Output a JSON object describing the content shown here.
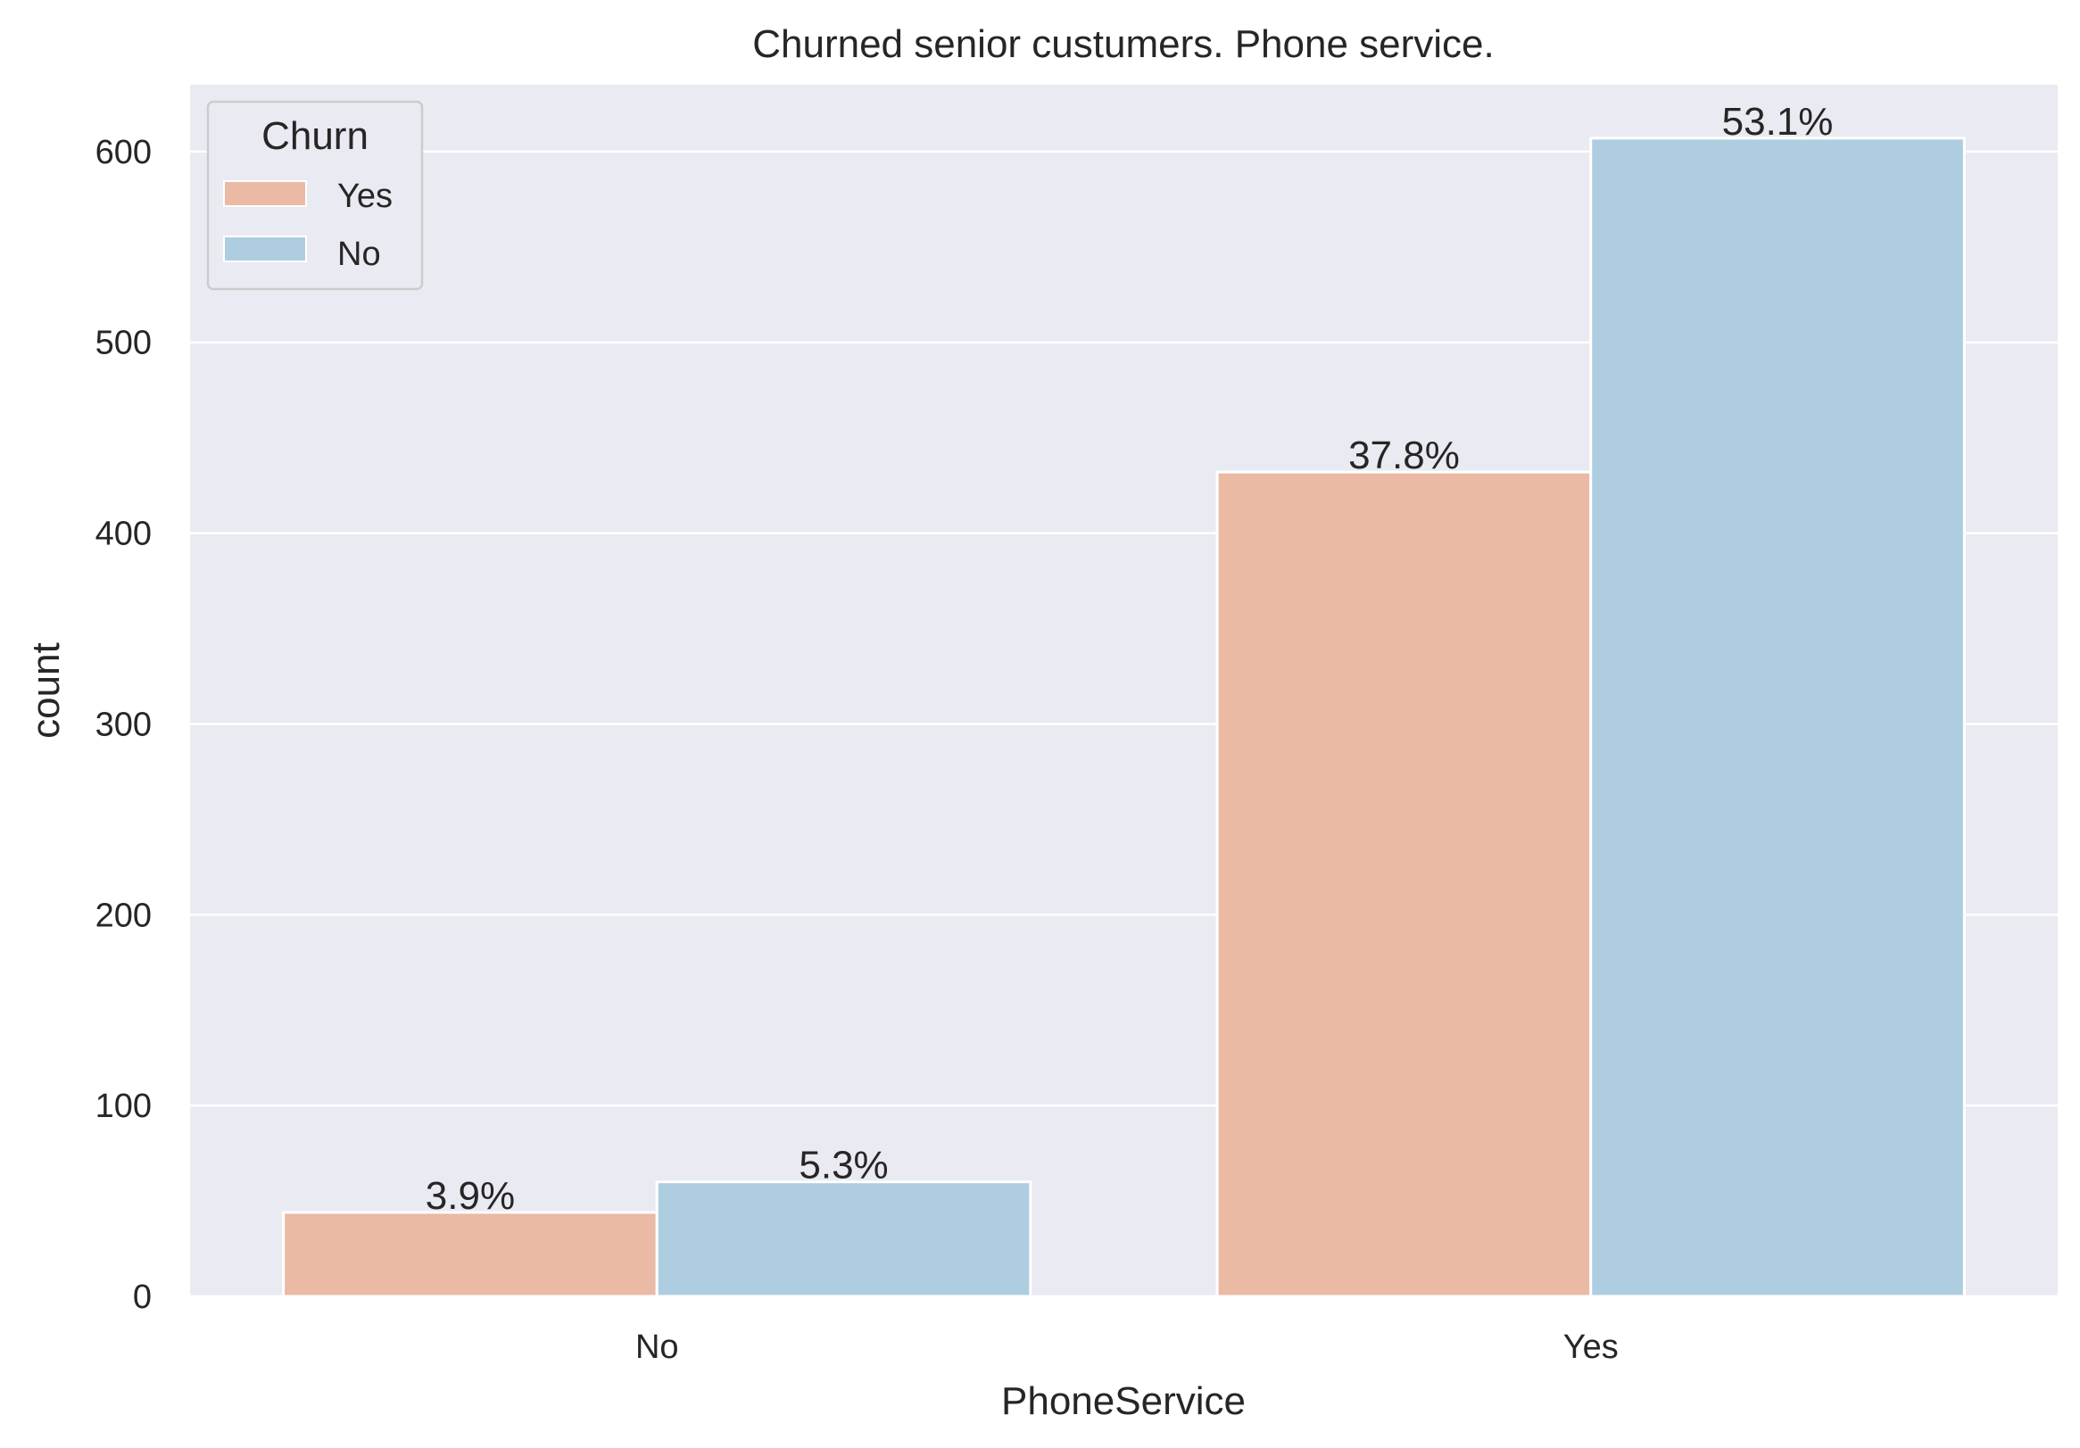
{
  "chart_data": {
    "type": "bar",
    "title": "Churned senior custumers. Phone service.",
    "xlabel": "PhoneService",
    "ylabel": "count",
    "categories": [
      "No",
      "Yes"
    ],
    "ylim": [
      0,
      635
    ],
    "yticks": [
      0,
      100,
      200,
      300,
      400,
      500,
      600
    ],
    "grid": true,
    "series": [
      {
        "name": "Yes",
        "color": "#eabaa5",
        "values": [
          44,
          432
        ],
        "labels": [
          "3.9%",
          "37.8%"
        ]
      },
      {
        "name": "No",
        "color": "#afcde0",
        "values": [
          60,
          607
        ],
        "labels": [
          "5.3%",
          "53.1%"
        ]
      }
    ],
    "legend": {
      "title": "Churn",
      "position": "top-left",
      "entries": [
        "Yes",
        "No"
      ]
    },
    "background_color": "#eaeaf2",
    "grid_color": "#ffffff"
  }
}
